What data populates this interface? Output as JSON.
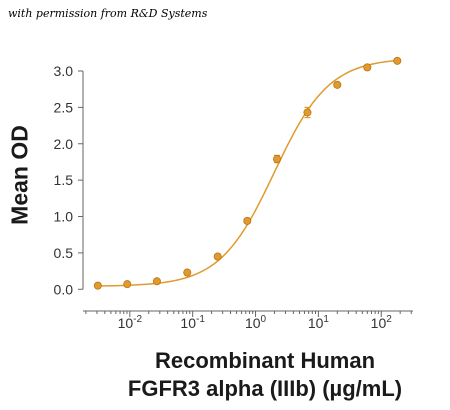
{
  "credit": "with permission from R&D Systems",
  "chart_data": {
    "type": "line",
    "xscale": "log",
    "xlim": [
      0.0018,
      320
    ],
    "ylim": [
      -0.12,
      3.22
    ],
    "xticks": [
      0.01,
      0.1,
      1,
      10,
      100
    ],
    "xtick_labels": [
      {
        "base": "10",
        "exp": "-2"
      },
      {
        "base": "10",
        "exp": "-1"
      },
      {
        "base": "10",
        "exp": "0"
      },
      {
        "base": "10",
        "exp": "1"
      },
      {
        "base": "10",
        "exp": "2"
      }
    ],
    "yticks": [
      0.0,
      0.5,
      1.0,
      1.5,
      2.0,
      2.5,
      3.0
    ],
    "ytick_labels": [
      "0.0",
      "0.5",
      "1.0",
      "1.5",
      "2.0",
      "2.5",
      "3.0"
    ],
    "xlabel_lines": [
      "Recombinant Human",
      "FGFR3 alpha (IIIb) (µg/mL)"
    ],
    "ylabel": "Mean OD",
    "grid": false,
    "color": "#E09A2E",
    "series": [
      {
        "x": [
          0.0031,
          0.0091,
          0.027,
          0.082,
          0.25,
          0.74,
          2.2,
          6.7,
          20,
          60,
          180
        ],
        "y": [
          0.05,
          0.07,
          0.11,
          0.23,
          0.45,
          0.94,
          1.79,
          2.43,
          2.81,
          3.05,
          3.14
        ],
        "err": [
          0.02,
          0.02,
          0.02,
          0.03,
          0.03,
          0.03,
          0.05,
          0.07,
          0.03,
          0.03,
          0.02
        ]
      }
    ],
    "fit_curve": {
      "model": "4PL",
      "bottom": 0.04,
      "top": 3.18,
      "ec50": 2.0,
      "hill": 1.0
    }
  }
}
